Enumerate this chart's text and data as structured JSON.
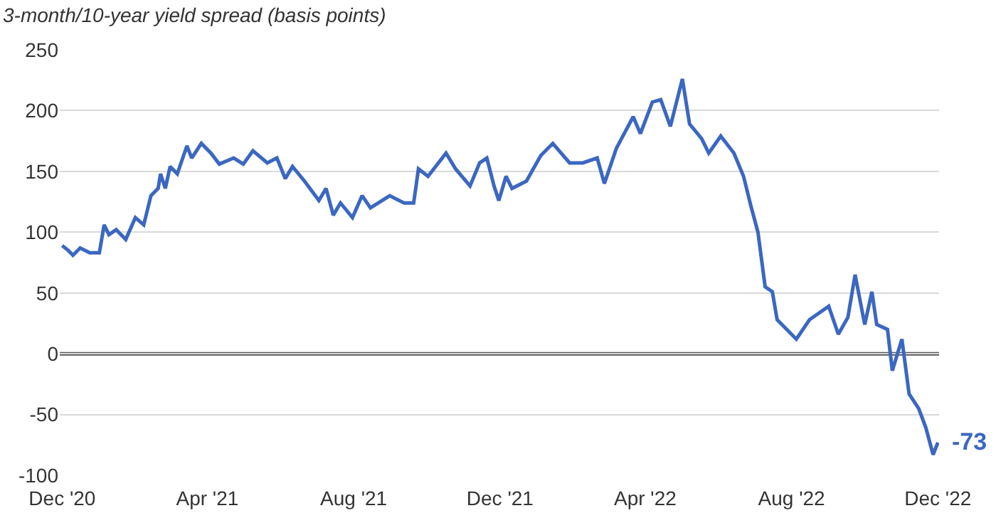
{
  "chart_data": {
    "type": "line",
    "title": "3-month/10-year yield spread (basis points)",
    "x": [
      "2020-12-01",
      "2020-12-06",
      "2020-12-10",
      "2020-12-16",
      "2020-12-24",
      "2021-01-01",
      "2021-01-05",
      "2021-01-09",
      "2021-01-15",
      "2021-01-23",
      "2021-01-31",
      "2021-02-07",
      "2021-02-13",
      "2021-02-19",
      "2021-02-21",
      "2021-02-25",
      "2021-03-01",
      "2021-03-07",
      "2021-03-15",
      "2021-03-19",
      "2021-03-27",
      "2021-04-04",
      "2021-04-11",
      "2021-04-23",
      "2021-05-01",
      "2021-05-09",
      "2021-05-21",
      "2021-05-29",
      "2021-06-05",
      "2021-06-11",
      "2021-06-21",
      "2021-07-03",
      "2021-07-09",
      "2021-07-15",
      "2021-07-21",
      "2021-07-31",
      "2021-08-08",
      "2021-08-15",
      "2021-08-31",
      "2021-09-12",
      "2021-09-20",
      "2021-09-24",
      "2021-10-02",
      "2021-10-17",
      "2021-10-25",
      "2021-11-06",
      "2021-11-14",
      "2021-11-20",
      "2021-11-26",
      "2021-11-30",
      "2021-12-06",
      "2021-12-11",
      "2021-12-23",
      "2022-01-04",
      "2022-01-14",
      "2022-01-28",
      "2022-02-08",
      "2022-02-20",
      "2022-02-26",
      "2022-03-08",
      "2022-03-22",
      "2022-03-28",
      "2022-04-07",
      "2022-04-14",
      "2022-04-22",
      "2022-05-02",
      "2022-05-08",
      "2022-05-18",
      "2022-05-24",
      "2022-06-03",
      "2022-06-14",
      "2022-06-22",
      "2022-06-28",
      "2022-07-04",
      "2022-07-10",
      "2022-07-16",
      "2022-07-20",
      "2022-08-05",
      "2022-08-16",
      "2022-09-01",
      "2022-09-09",
      "2022-09-17",
      "2022-09-23",
      "2022-10-01",
      "2022-10-07",
      "2022-10-11",
      "2022-10-20",
      "2022-10-24",
      "2022-11-01",
      "2022-11-07",
      "2022-11-15",
      "2022-11-21",
      "2022-11-27",
      "2022-12-01"
    ],
    "series": [
      {
        "color": "#3b67c1",
        "values": [
          89,
          85,
          81,
          87,
          83,
          83,
          106,
          98,
          102,
          94,
          112,
          106,
          130,
          136,
          148,
          136,
          154,
          148,
          171,
          161,
          173,
          165,
          156,
          161,
          156,
          167,
          157,
          161,
          144,
          154,
          142,
          126,
          136,
          114,
          124,
          112,
          130,
          120,
          130,
          124,
          124,
          152,
          146,
          165,
          152,
          138,
          157,
          161,
          138,
          126,
          146,
          136,
          142,
          163,
          173,
          157,
          157,
          161,
          140,
          169,
          195,
          181,
          207,
          209,
          187,
          226,
          189,
          177,
          165,
          179,
          165,
          146,
          122,
          100,
          55,
          51,
          28,
          12,
          28,
          39,
          16,
          30,
          65,
          24,
          51,
          24,
          20,
          -14,
          12,
          -33,
          -45,
          -61,
          -83,
          -73
        ]
      }
    ],
    "xlim": [
      "2020-11-29",
      "2022-12-02"
    ],
    "xticks": [
      {
        "value": "2020-12-01",
        "label": "Dec '20"
      },
      {
        "value": "2021-04-01",
        "label": "Apr '21"
      },
      {
        "value": "2021-08-01",
        "label": "Aug '21"
      },
      {
        "value": "2021-12-01",
        "label": "Dec '21"
      },
      {
        "value": "2022-04-01",
        "label": "Apr '22"
      },
      {
        "value": "2022-08-01",
        "label": "Aug '22"
      },
      {
        "value": "2022-12-01",
        "label": "Dec '22"
      }
    ],
    "ylim": [
      -100,
      250
    ],
    "yticks": [
      -100,
      -50,
      0,
      50,
      100,
      150,
      200,
      250
    ],
    "grid": "y",
    "line_style": "solid",
    "ref_lines": [
      {
        "axis": "y",
        "value": 0,
        "color": "#555555"
      }
    ],
    "annotations": [
      {
        "text": "-73",
        "x": "2022-12-01",
        "y": -73
      }
    ]
  }
}
